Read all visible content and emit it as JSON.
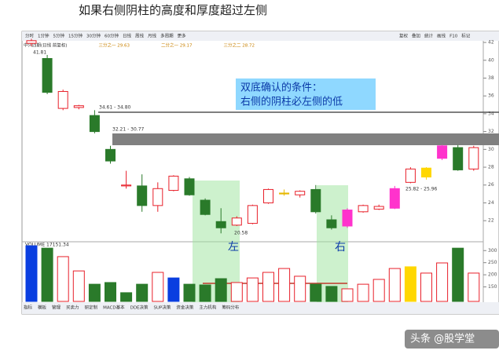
{
  "header": {
    "title": "如果右侧阴柱的高度和厚度超过左侧"
  },
  "toolbar": [
    "分时",
    "1分钟",
    "5分钟",
    "15分钟",
    "30分钟",
    "60分钟",
    "日线",
    "周线",
    "月线",
    "多周期",
    "更多"
  ],
  "toolbar_right": [
    "复权",
    "叠加",
    "统计",
    "画线",
    "F10",
    "标记"
  ],
  "info": [
    "中兴四期(日线 前复权)",
    "三分之一 29.63",
    "二分之一 29.17",
    "三分之二 28.72"
  ],
  "tabs": [
    "指标",
    "模板",
    "管理",
    "买卖力",
    "研定制",
    "MACD基本",
    "DDE决策",
    "SUP决策",
    "资金决策",
    "主力机构",
    "筹码分布"
  ],
  "watermark": "头条 @股学堂",
  "chart_data": {
    "type": "candlestick",
    "ylim": [
      19.9,
      42.8
    ],
    "yticks": [
      22,
      24,
      26,
      28,
      30,
      32,
      34,
      36,
      38,
      40,
      42
    ],
    "up_color": "#e8202a",
    "candles": [
      {
        "open": 41.9,
        "high": 42.4,
        "low": 41.6,
        "close": 42.2,
        "color": "#e8202a"
      },
      {
        "open": 40.2,
        "high": 40.6,
        "low": 36.2,
        "close": 36.4,
        "color": "#2a7a2a"
      },
      {
        "open": 34.6,
        "high": 36.7,
        "low": 34.4,
        "close": 36.5,
        "color": "#e8202a"
      },
      {
        "open": 34.7,
        "high": 35.0,
        "low": 34.5,
        "close": 34.9,
        "color": "#e8202a"
      },
      {
        "open": 33.8,
        "high": 34.4,
        "low": 31.8,
        "close": 32.0,
        "color": "#2a7a2a"
      },
      {
        "open": 30.0,
        "high": 30.4,
        "low": 28.4,
        "close": 28.7,
        "color": "#2a7a2a"
      },
      {
        "open": 25.9,
        "high": 27.6,
        "low": 25.6,
        "close": 26.0,
        "color": "#e8202a"
      },
      {
        "open": 25.9,
        "high": 27.2,
        "low": 23.0,
        "close": 23.7,
        "color": "#2a7a2a"
      },
      {
        "open": 23.7,
        "high": 26.3,
        "low": 23.0,
        "close": 25.6,
        "color": "#e8202a"
      },
      {
        "open": 25.4,
        "high": 27.1,
        "low": 25.3,
        "close": 27.0,
        "color": "#e8202a"
      },
      {
        "open": 26.7,
        "high": 26.9,
        "low": 24.8,
        "close": 24.9,
        "color": "#2a7a2a"
      },
      {
        "open": 24.3,
        "high": 24.5,
        "low": 22.6,
        "close": 22.7,
        "color": "#2a7a2a"
      },
      {
        "open": 21.9,
        "high": 23.4,
        "low": 20.58,
        "close": 21.2,
        "color": "#2a7a2a"
      },
      {
        "open": 21.5,
        "high": 22.5,
        "low": 21.4,
        "close": 22.3,
        "color": "#e8202a"
      },
      {
        "open": 21.7,
        "high": 23.8,
        "low": 21.6,
        "close": 23.7,
        "color": "#e8202a"
      },
      {
        "open": 24.0,
        "high": 25.6,
        "low": 23.9,
        "close": 25.5,
        "color": "#e8202a"
      },
      {
        "open": 25.0,
        "high": 25.5,
        "low": 24.8,
        "close": 25.1,
        "color": "#e6b800"
      },
      {
        "open": 24.9,
        "high": 25.4,
        "low": 24.6,
        "close": 25.3,
        "color": "#e8202a"
      },
      {
        "open": 25.5,
        "high": 26.0,
        "low": 22.8,
        "close": 23.0,
        "color": "#2a7a2a"
      },
      {
        "open": 22.1,
        "high": 22.6,
        "low": 21.0,
        "close": 21.2,
        "color": "#2a7a2a"
      },
      {
        "open": 21.4,
        "high": 23.4,
        "low": 21.2,
        "close": 23.2,
        "color": "#ff33cc"
      },
      {
        "open": 23.0,
        "high": 23.8,
        "low": 22.9,
        "close": 23.7,
        "color": "#e8202a"
      },
      {
        "open": 23.3,
        "high": 23.8,
        "low": 23.2,
        "close": 23.6,
        "color": "#e8202a"
      },
      {
        "open": 23.4,
        "high": 25.9,
        "low": 23.3,
        "close": 25.6,
        "color": "#ff33cc"
      },
      {
        "open": 26.3,
        "high": 28.0,
        "low": 26.2,
        "close": 27.8,
        "color": "#e8202a"
      },
      {
        "open": 26.9,
        "high": 28.0,
        "low": 26.6,
        "close": 27.9,
        "color": "#ffd700"
      },
      {
        "open": 29.0,
        "high": 30.5,
        "low": 28.8,
        "close": 30.4,
        "color": "#ff33cc"
      },
      {
        "open": 30.2,
        "high": 30.5,
        "low": 27.6,
        "close": 27.7,
        "color": "#2a7a2a"
      },
      {
        "open": 27.8,
        "high": 30.4,
        "low": 27.6,
        "close": 30.2,
        "color": "#e8202a"
      }
    ],
    "volume": {
      "label": "VOLUME 17151.34",
      "ylim": [
        90,
        330
      ],
      "yticks": [
        150,
        200,
        250,
        300
      ],
      "values": [
        320,
        310,
        275,
        216,
        161,
        168,
        126,
        161,
        210,
        187,
        161,
        158,
        184,
        168,
        187,
        210,
        226,
        194,
        161,
        152,
        142,
        161,
        181,
        226,
        233,
        207,
        249,
        310,
        207
      ],
      "colors": [
        "#0a3ee0",
        "#2a7a2a",
        "#e8202a",
        "#e8202a",
        "#2a7a2a",
        "#2a7a2a",
        "#2a7a2a",
        "#2a7a2a",
        "#e8202a",
        "#0a3ee0",
        "#2a7a2a",
        "#2a7a2a",
        "#2a7a2a",
        "#e8202a",
        "#e8202a",
        "#e8202a",
        "#e8202a",
        "#e8202a",
        "#2a7a2a",
        "#2a7a2a",
        "#e8202a",
        "#e8202a",
        "#e8202a",
        "#e8202a",
        "#ffd700",
        "#e8202a",
        "#e8202a",
        "#2a7a2a",
        "#e8202a"
      ]
    },
    "annotations": {
      "box": [
        "双底确认的条件：",
        "右侧的阴柱必左侧的低"
      ],
      "left": "左",
      "right": "右",
      "levels": [
        "41.81",
        "34.61 - 34.80",
        "32.21 - 30.77",
        "25.82 - 25.96",
        "20.58"
      ]
    }
  }
}
